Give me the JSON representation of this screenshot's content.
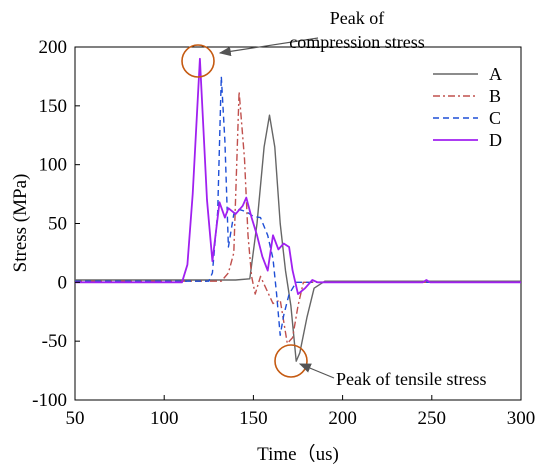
{
  "chart_data": {
    "type": "line",
    "xlabel": "Time（us)",
    "ylabel": "Stress (MPa)",
    "xlim": [
      50,
      300
    ],
    "ylim": [
      -100,
      200
    ],
    "xticks": [
      "50",
      "100",
      "150",
      "200",
      "250",
      "300"
    ],
    "yticks": [
      "-100",
      "-50",
      "0",
      "50",
      "100",
      "150",
      "200"
    ],
    "grid": false,
    "legend_position": "top-right",
    "series": [
      {
        "name": "A",
        "color": "#666666",
        "dash": "solid",
        "points": [
          [
            50,
            2
          ],
          [
            140,
            2
          ],
          [
            148,
            3
          ],
          [
            152,
            50
          ],
          [
            156,
            115
          ],
          [
            159,
            142
          ],
          [
            162,
            115
          ],
          [
            165,
            50
          ],
          [
            168,
            10
          ],
          [
            171,
            -20
          ],
          [
            174,
            -67
          ],
          [
            176,
            -60
          ],
          [
            180,
            -30
          ],
          [
            184,
            -5
          ],
          [
            190,
            1
          ],
          [
            300,
            1
          ]
        ]
      },
      {
        "name": "B",
        "color": "#c0504d",
        "dash": "dashdot",
        "points": [
          [
            50,
            1
          ],
          [
            132,
            1
          ],
          [
            136,
            8
          ],
          [
            139,
            25
          ],
          [
            142,
            162
          ],
          [
            145,
            105
          ],
          [
            147,
            40
          ],
          [
            149,
            5
          ],
          [
            151,
            -10
          ],
          [
            154,
            5
          ],
          [
            157,
            -5
          ],
          [
            161,
            -18
          ],
          [
            165,
            -15
          ],
          [
            169,
            -52
          ],
          [
            172,
            -47
          ],
          [
            175,
            -20
          ],
          [
            178,
            0
          ],
          [
            300,
            0
          ]
        ]
      },
      {
        "name": "C",
        "color": "#1f4fd6",
        "dash": "dashed",
        "points": [
          [
            50,
            1
          ],
          [
            125,
            1
          ],
          [
            127,
            8
          ],
          [
            130,
            60
          ],
          [
            132,
            175
          ],
          [
            134,
            120
          ],
          [
            136,
            30
          ],
          [
            139,
            58
          ],
          [
            142,
            62
          ],
          [
            146,
            60
          ],
          [
            150,
            56
          ],
          [
            154,
            55
          ],
          [
            158,
            40
          ],
          [
            161,
            20
          ],
          [
            163,
            -10
          ],
          [
            165,
            -45
          ],
          [
            167,
            -28
          ],
          [
            170,
            -10
          ],
          [
            174,
            0
          ],
          [
            300,
            0
          ]
        ]
      },
      {
        "name": "D",
        "color": "#a020f0",
        "dash": "solid",
        "points": [
          [
            50,
            0
          ],
          [
            110,
            0
          ],
          [
            113,
            15
          ],
          [
            116,
            75
          ],
          [
            120,
            190
          ],
          [
            124,
            70
          ],
          [
            127,
            18
          ],
          [
            131,
            68
          ],
          [
            134,
            55
          ],
          [
            136,
            63
          ],
          [
            140,
            58
          ],
          [
            144,
            65
          ],
          [
            146,
            72
          ],
          [
            149,
            55
          ],
          [
            152,
            40
          ],
          [
            155,
            22
          ],
          [
            158,
            10
          ],
          [
            161,
            40
          ],
          [
            164,
            28
          ],
          [
            167,
            33
          ],
          [
            170,
            30
          ],
          [
            172,
            10
          ],
          [
            175,
            -10
          ],
          [
            179,
            -5
          ],
          [
            183,
            2
          ],
          [
            186,
            0
          ],
          [
            245,
            0
          ],
          [
            247,
            2
          ],
          [
            249,
            0
          ],
          [
            300,
            0
          ]
        ]
      }
    ],
    "annotations": [
      {
        "text_lines": [
          "Peak of",
          "compression stress"
        ],
        "target": [
          120,
          190
        ]
      },
      {
        "text_lines": [
          "Peak of tensile stress"
        ],
        "target": [
          173,
          -65
        ]
      }
    ]
  }
}
